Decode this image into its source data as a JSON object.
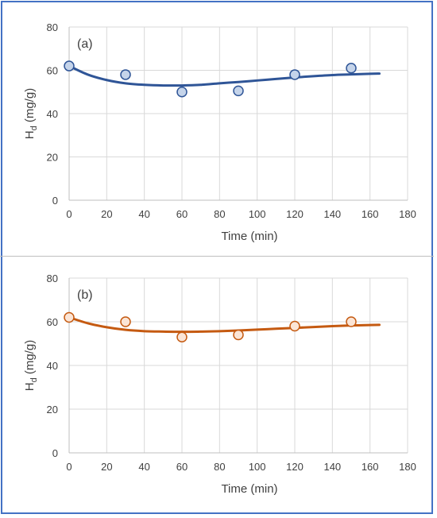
{
  "chart_data": [
    {
      "type": "scatter",
      "label": "(a)",
      "xlabel": "Time (min)",
      "ylabel_main": "H",
      "ylabel_sub": "d",
      "ylabel_rest": " (mg/g)",
      "xlim": [
        0,
        180
      ],
      "ylim": [
        0,
        80
      ],
      "xticks": [
        0,
        20,
        40,
        60,
        80,
        100,
        120,
        140,
        160,
        180
      ],
      "yticks": [
        0,
        20,
        40,
        60,
        80
      ],
      "grid": true,
      "points": {
        "x": [
          0,
          30,
          60,
          90,
          120,
          150
        ],
        "y": [
          62,
          58,
          50,
          50.5,
          58,
          61
        ]
      },
      "fit": {
        "x": [
          0,
          10,
          20,
          30,
          40,
          50,
          60,
          70,
          80,
          90,
          100,
          110,
          120,
          130,
          140,
          150,
          160,
          165
        ],
        "y": [
          62,
          58,
          55.5,
          54,
          53.3,
          53,
          53,
          53.3,
          54,
          54.6,
          55.3,
          56,
          56.7,
          57.3,
          57.8,
          58.1,
          58.4,
          58.5
        ]
      },
      "line_color": "#2f5597",
      "marker_fill": "#c5d4ea",
      "marker_stroke": "#2f5597"
    },
    {
      "type": "scatter",
      "label": "(b)",
      "xlabel": "Time (min)",
      "ylabel_main": "H",
      "ylabel_sub": "d",
      "ylabel_rest": " (mg/g)",
      "xlim": [
        0,
        180
      ],
      "ylim": [
        0,
        80
      ],
      "xticks": [
        0,
        20,
        40,
        60,
        80,
        100,
        120,
        140,
        160,
        180
      ],
      "yticks": [
        0,
        20,
        40,
        60,
        80
      ],
      "grid": true,
      "points": {
        "x": [
          0,
          30,
          60,
          90,
          120,
          150
        ],
        "y": [
          62,
          60,
          53,
          54,
          58,
          60
        ]
      },
      "fit": {
        "x": [
          0,
          10,
          20,
          30,
          40,
          50,
          60,
          70,
          80,
          90,
          100,
          110,
          120,
          130,
          140,
          150,
          160,
          165
        ],
        "y": [
          62,
          59.3,
          57.5,
          56.3,
          55.7,
          55.5,
          55.4,
          55.5,
          55.7,
          56,
          56.4,
          56.8,
          57.2,
          57.6,
          58,
          58.3,
          58.5,
          58.6
        ]
      },
      "line_color": "#c55a11",
      "marker_fill": "#fbe5d6",
      "marker_stroke": "#c55a11"
    }
  ]
}
